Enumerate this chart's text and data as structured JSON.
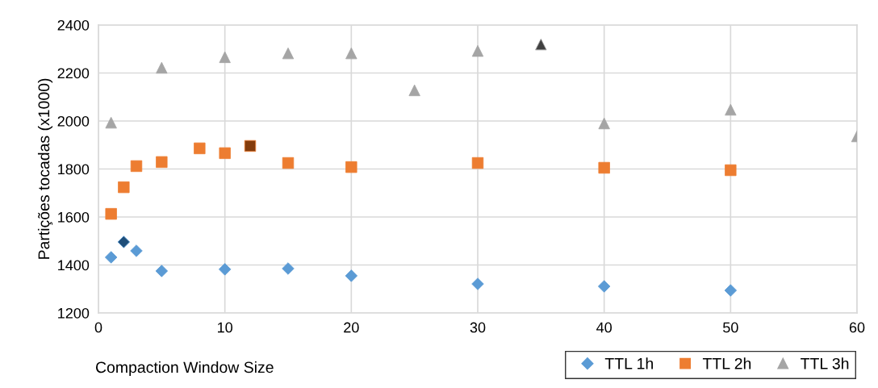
{
  "chart_data": {
    "type": "scatter",
    "xlabel": "Compaction Window Size",
    "ylabel": "Partições tocadas (x1000)",
    "xlim": [
      0,
      60
    ],
    "xticks": [
      0,
      10,
      20,
      30,
      40,
      50,
      60
    ],
    "ylim": [
      1200,
      2400
    ],
    "yticks": [
      1200,
      1400,
      1600,
      1800,
      2000,
      2200,
      2400
    ],
    "grid": true,
    "legend": "bottom right",
    "series": [
      {
        "name": "TTL 1h",
        "color": "#5b9bd5",
        "marker": "diamond",
        "x": [
          1,
          2,
          3,
          5,
          10,
          15,
          20,
          30,
          40,
          50
        ],
        "values": [
          1432,
          1496,
          1459,
          1375,
          1382,
          1385,
          1355,
          1321,
          1311,
          1294
        ],
        "colors": [
          "#5b9bd5",
          "#1f4e79",
          "#5b9bd5",
          "#5b9bd5",
          "#5b9bd5",
          "#5b9bd5",
          "#5b9bd5",
          "#5b9bd5",
          "#5b9bd5",
          "#5b9bd5"
        ]
      },
      {
        "name": "TTL 2h",
        "color": "#ed7d31",
        "marker": "square",
        "x": [
          1,
          2,
          3,
          5,
          8,
          10,
          12,
          15,
          20,
          30,
          40,
          50
        ],
        "values": [
          1613,
          1724,
          1812,
          1829,
          1886,
          1866,
          1896,
          1825,
          1808,
          1825,
          1805,
          1795
        ],
        "colors": [
          "#ed7d31",
          "#ed7d31",
          "#ed7d31",
          "#ed7d31",
          "#ed7d31",
          "#ed7d31",
          "#843c0c",
          "#ed7d31",
          "#ed7d31",
          "#ed7d31",
          "#ed7d31",
          "#ed7d31"
        ]
      },
      {
        "name": "TTL 3h",
        "color": "#a5a5a5",
        "marker": "triangle",
        "x": [
          1,
          5,
          10,
          15,
          20,
          25,
          30,
          35,
          40,
          50,
          60
        ],
        "values": [
          1993,
          2222,
          2266,
          2282,
          2282,
          2128,
          2292,
          2319,
          1990,
          2047,
          1936
        ],
        "colors": [
          "#a5a5a5",
          "#a5a5a5",
          "#a5a5a5",
          "#a5a5a5",
          "#a5a5a5",
          "#a5a5a5",
          "#a5a5a5",
          "#404040",
          "#a5a5a5",
          "#a5a5a5",
          "#a5a5a5"
        ]
      }
    ]
  }
}
